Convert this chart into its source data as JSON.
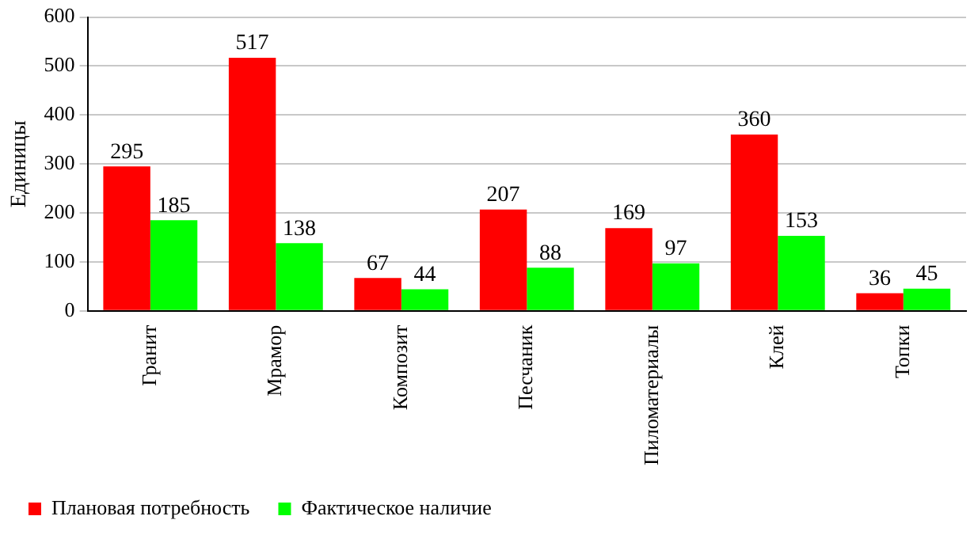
{
  "chart_data": {
    "type": "bar",
    "ylabel": "Единицы",
    "categories": [
      "Гранит",
      "Мрамор",
      "Композит",
      "Песчаник",
      "Пиломатериалы",
      "Клей",
      "Топки"
    ],
    "series": [
      {
        "name": "Плановая потребность",
        "color": "#ff0000",
        "values": [
          295,
          517,
          67,
          207,
          169,
          360,
          36
        ]
      },
      {
        "name": "Фактическое наличие",
        "color": "#00ff00",
        "values": [
          185,
          138,
          44,
          88,
          97,
          153,
          45
        ]
      }
    ],
    "ylim": [
      0,
      600
    ],
    "yticks": [
      0,
      100,
      200,
      300,
      400,
      500,
      600
    ],
    "grid": "y",
    "legend": "bottom",
    "data_labels": true
  }
}
